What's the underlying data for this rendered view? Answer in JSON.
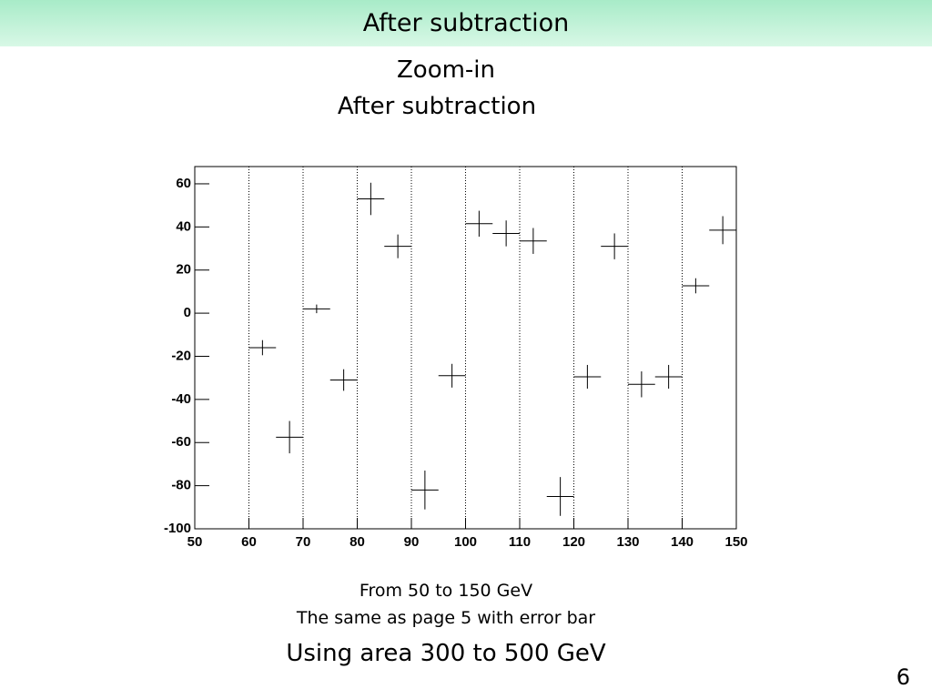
{
  "slide": {
    "header": "After subtraction",
    "title_lines": [
      "Zoom-in",
      "After subtraction"
    ],
    "notes": [
      "From 50 to 150 GeV",
      "The same as page 5 with error bar"
    ],
    "footer": "Using area 300 to 500 GeV",
    "page_number": "6"
  },
  "chart_data": {
    "type": "scatter",
    "color": "#000000",
    "x": [
      62.5,
      67.5,
      72.5,
      77.5,
      82.5,
      87.5,
      92.5,
      97.5,
      102.5,
      107.5,
      112.5,
      117.5,
      122.5,
      127.5,
      132.5,
      137.5,
      142.5,
      147.5
    ],
    "values": [
      -16,
      -57.5,
      2,
      -31,
      53,
      31,
      -82,
      -29,
      41.5,
      37,
      33.5,
      -85,
      -29.5,
      31,
      -33,
      -29.5,
      12.7,
      38.5
    ],
    "errors": [
      3.5,
      7.5,
      2,
      5,
      7.5,
      5.5,
      9,
      5.5,
      6,
      6,
      6,
      9,
      5.5,
      6,
      6,
      5.5,
      3.5,
      6.5
    ],
    "xerr": 2.5,
    "xlim": [
      50,
      150
    ],
    "ylim": [
      -100,
      68
    ],
    "xticks": [
      50,
      60,
      70,
      80,
      90,
      100,
      110,
      120,
      130,
      140,
      150
    ],
    "yticks": [
      -100,
      -80,
      -60,
      -40,
      -20,
      0,
      20,
      40,
      60
    ],
    "grid": true
  }
}
